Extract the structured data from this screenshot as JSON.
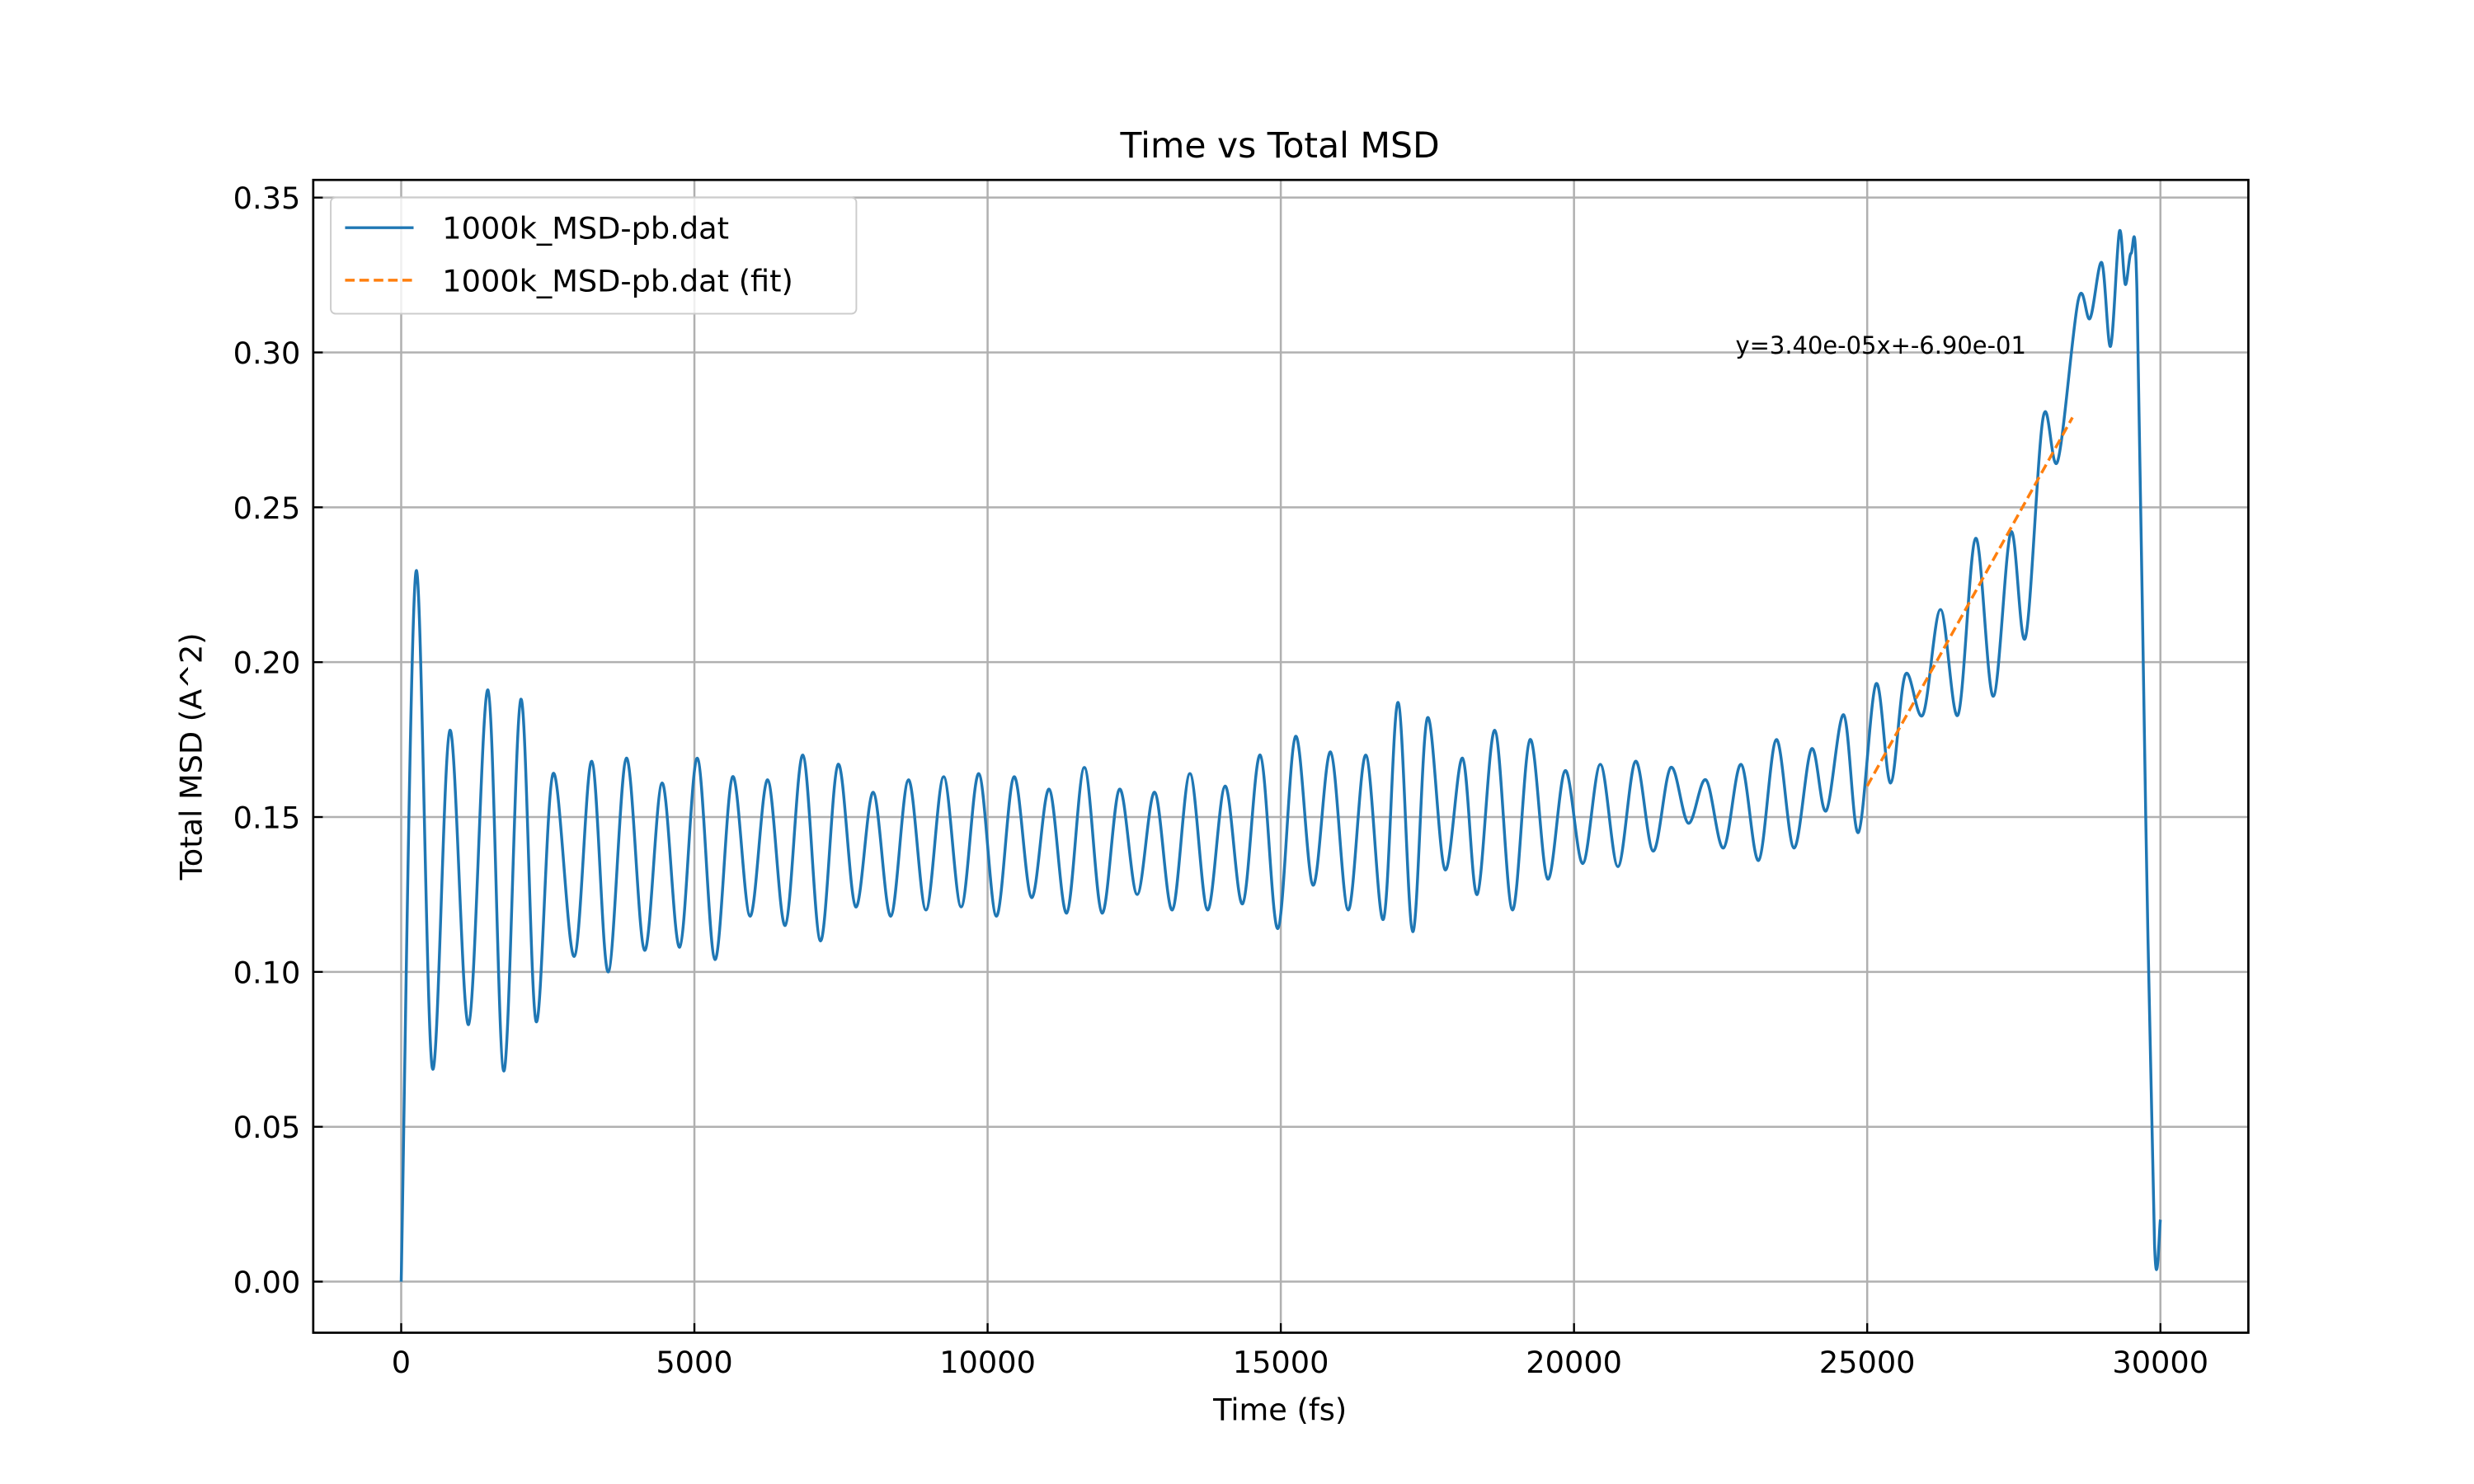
{
  "chart_data": {
    "type": "line",
    "title": "Time vs Total MSD",
    "x_label": "Time (fs)",
    "y_label": "Total MSD (A^2)",
    "xlim": [
      -1500,
      31500
    ],
    "ylim": [
      -0.0165,
      0.3557
    ],
    "xticks": [
      0,
      5000,
      10000,
      15000,
      20000,
      25000,
      30000
    ],
    "yticks": [
      {
        "value": 0,
        "label": "0.00"
      },
      {
        "value": 0.05,
        "label": "0.05"
      },
      {
        "value": 0.1,
        "label": "0.10"
      },
      {
        "value": 0.15,
        "label": "0.15"
      },
      {
        "value": 0.2,
        "label": "0.20"
      },
      {
        "value": 0.25,
        "label": "0.25"
      },
      {
        "value": 0.3,
        "label": "0.30"
      },
      {
        "value": 0.35,
        "label": "0.35"
      }
    ],
    "grid": true,
    "legend": "upper left",
    "annotation": "y=3.40e-05x+-6.90e-01",
    "series": [
      {
        "name": "1000k_MSD-pb.dat",
        "color": "#1f77b4",
        "dash": "solid",
        "x": [
          0,
          250,
          530,
          830,
          1150,
          1480,
          1750,
          2040,
          2300,
          2590,
          2950,
          3250,
          3530,
          3840,
          4150,
          4450,
          4750,
          5050,
          5350,
          5650,
          5950,
          6250,
          6550,
          6850,
          7150,
          7450,
          7750,
          8050,
          8350,
          8650,
          8950,
          9250,
          9550,
          9850,
          10150,
          10450,
          10750,
          11050,
          11350,
          11650,
          11950,
          12250,
          12550,
          12850,
          13150,
          13450,
          13750,
          14050,
          14350,
          14650,
          14950,
          15250,
          15550,
          15850,
          16150,
          16450,
          16750,
          17000,
          17250,
          17500,
          17800,
          18100,
          18350,
          18650,
          18950,
          19250,
          19550,
          19850,
          20150,
          20450,
          20750,
          21050,
          21350,
          21650,
          21950,
          22250,
          22550,
          22850,
          23150,
          23450,
          23750,
          24050,
          24300,
          24600,
          24850,
          25150,
          25400,
          25650,
          25950,
          26250,
          26550,
          26850,
          27150,
          27450,
          27700,
          28000,
          28250,
          28600,
          28800,
          29000,
          29150,
          29300,
          29400,
          29500,
          29600,
          29750,
          29900,
          30000
        ],
        "values": [
          0.0,
          0.229,
          0.069,
          0.178,
          0.083,
          0.191,
          0.068,
          0.188,
          0.084,
          0.164,
          0.105,
          0.168,
          0.1,
          0.169,
          0.107,
          0.161,
          0.108,
          0.169,
          0.104,
          0.163,
          0.118,
          0.162,
          0.115,
          0.17,
          0.11,
          0.167,
          0.121,
          0.158,
          0.118,
          0.162,
          0.12,
          0.163,
          0.121,
          0.164,
          0.118,
          0.163,
          0.124,
          0.159,
          0.119,
          0.166,
          0.119,
          0.159,
          0.125,
          0.158,
          0.12,
          0.164,
          0.12,
          0.16,
          0.122,
          0.17,
          0.114,
          0.176,
          0.128,
          0.171,
          0.12,
          0.17,
          0.117,
          0.187,
          0.113,
          0.182,
          0.133,
          0.169,
          0.125,
          0.178,
          0.12,
          0.175,
          0.13,
          0.165,
          0.135,
          0.167,
          0.134,
          0.168,
          0.139,
          0.166,
          0.148,
          0.162,
          0.14,
          0.167,
          0.136,
          0.175,
          0.14,
          0.172,
          0.152,
          0.183,
          0.145,
          0.193,
          0.161,
          0.196,
          0.183,
          0.217,
          0.183,
          0.24,
          0.189,
          0.242,
          0.208,
          0.279,
          0.265,
          0.317,
          0.311,
          0.329,
          0.302,
          0.339,
          0.322,
          0.332,
          0.32,
          0.15,
          0.012,
          0.02
        ]
      },
      {
        "name": "1000k_MSD-pb.dat (fit)",
        "color": "#ff7f0e",
        "dash": "dashed",
        "x": [
          25000,
          28500
        ],
        "values": [
          0.16,
          0.279
        ]
      }
    ]
  }
}
